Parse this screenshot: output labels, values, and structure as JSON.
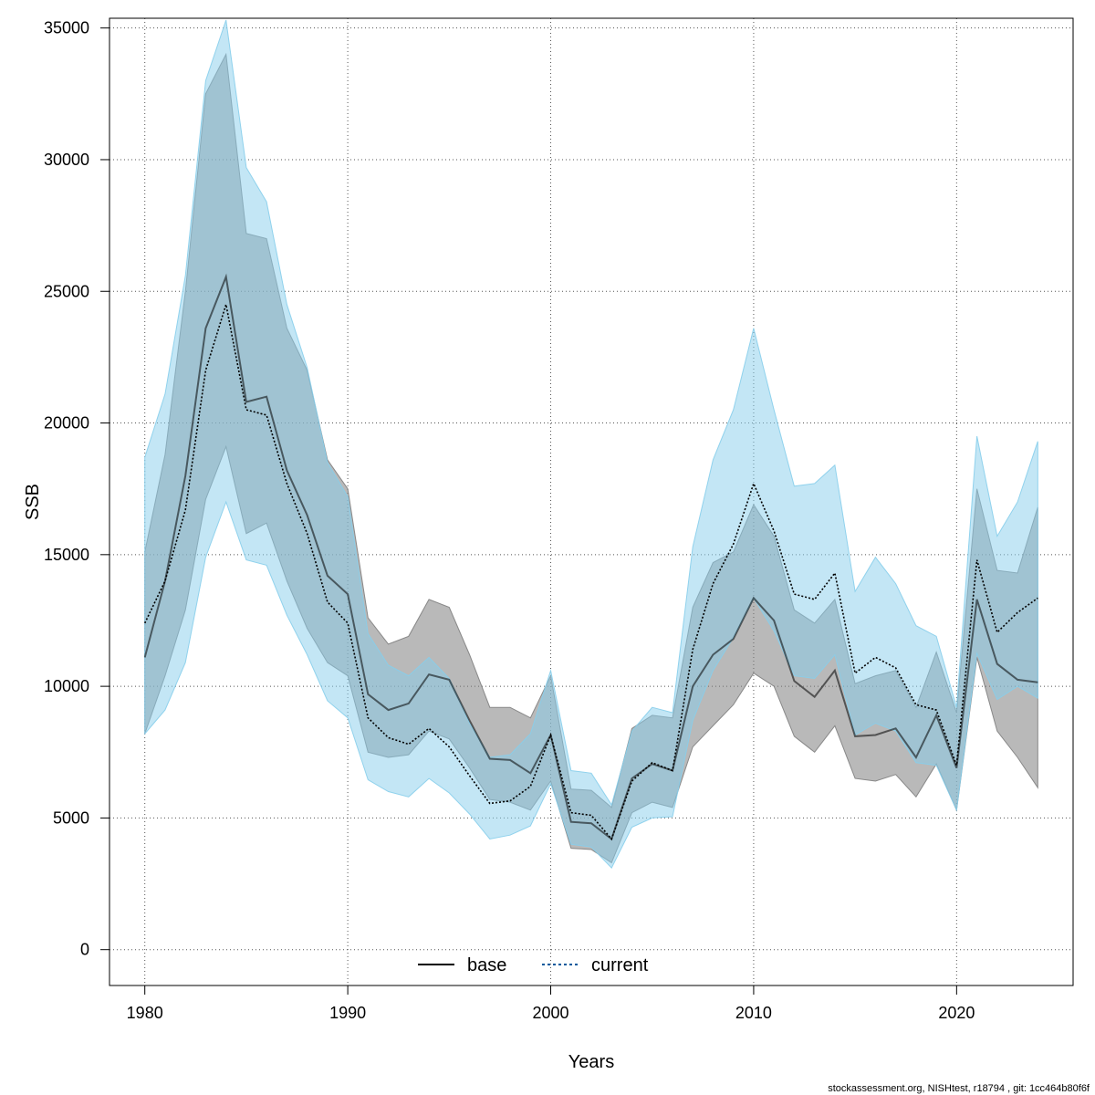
{
  "chart_data": {
    "type": "line",
    "xlabel": "Years",
    "ylabel": "SSB",
    "xlim": [
      1978.26,
      2025.74
    ],
    "ylim": [
      -1362,
      35370
    ],
    "xticks": [
      1980,
      1990,
      2000,
      2010,
      2020
    ],
    "yticks": [
      0,
      5000,
      10000,
      15000,
      20000,
      25000,
      30000,
      35000
    ],
    "grid": true,
    "legend_position": "bottom",
    "x": [
      1980,
      1981,
      1982,
      1983,
      1984,
      1985,
      1986,
      1987,
      1988,
      1989,
      1990,
      1991,
      1992,
      1993,
      1994,
      1995,
      1996,
      1997,
      1998,
      1999,
      2000,
      2001,
      2002,
      2003,
      2004,
      2005,
      2006,
      2007,
      2008,
      2009,
      2010,
      2011,
      2012,
      2013,
      2014,
      2015,
      2016,
      2017,
      2018,
      2019,
      2020,
      2021,
      2022,
      2023,
      2024
    ],
    "series": [
      {
        "name": "base",
        "line_style": "solid",
        "color": "#000000",
        "band_color": "#808080",
        "values": [
          11100,
          14000,
          18000,
          23600,
          25550,
          20800,
          21000,
          18200,
          16500,
          14200,
          13500,
          9700,
          9100,
          9350,
          10450,
          10250,
          8700,
          7250,
          7200,
          6700,
          8150,
          4850,
          4800,
          4200,
          6500,
          7050,
          6800,
          10000,
          11200,
          11800,
          13350,
          12500,
          10200,
          9600,
          10600,
          8100,
          8150,
          8400,
          7300,
          8900,
          6900,
          13300,
          10850,
          10250,
          10150
        ],
        "lower": [
          8200,
          10400,
          12900,
          17100,
          19100,
          15800,
          16200,
          14000,
          12200,
          10900,
          10400,
          7500,
          7300,
          7400,
          8300,
          8000,
          6900,
          5700,
          5600,
          5300,
          6400,
          3850,
          3800,
          3300,
          5200,
          5600,
          5400,
          7700,
          8500,
          9300,
          10500,
          10000,
          8100,
          7500,
          8500,
          6500,
          6400,
          6650,
          5800,
          7050,
          5300,
          11100,
          8300,
          7300,
          6150
        ],
        "upper": [
          15100,
          18800,
          25000,
          32500,
          34000,
          27200,
          27000,
          23600,
          22000,
          18600,
          17500,
          12600,
          11600,
          11900,
          13300,
          13000,
          11200,
          9200,
          9200,
          8800,
          10400,
          6100,
          6050,
          5400,
          8400,
          8900,
          8800,
          13000,
          14700,
          15100,
          16900,
          15700,
          12900,
          12400,
          13300,
          10100,
          10400,
          10600,
          9200,
          11300,
          9000,
          17500,
          14400,
          14300,
          16800
        ]
      },
      {
        "name": "current",
        "line_style": "dotted",
        "color": "#005a9c",
        "band_color": "#87ceeb",
        "values": [
          12400,
          14000,
          16700,
          22000,
          24500,
          20500,
          20300,
          17700,
          15800,
          13200,
          12400,
          8800,
          8050,
          7800,
          8400,
          7700,
          6600,
          5550,
          5650,
          6200,
          8150,
          5200,
          5100,
          4200,
          6400,
          7100,
          6800,
          11400,
          13900,
          15400,
          17700,
          15900,
          13500,
          13300,
          14300,
          10500,
          11100,
          10700,
          9300,
          9100,
          7000,
          14800,
          12050,
          12800,
          13350
        ],
        "lower": [
          8200,
          9100,
          10900,
          14900,
          17000,
          14800,
          14600,
          12700,
          11200,
          9450,
          8800,
          6450,
          6000,
          5800,
          6500,
          5950,
          5150,
          4200,
          4350,
          4700,
          6300,
          4000,
          3900,
          3100,
          4650,
          5000,
          5050,
          8700,
          10600,
          11850,
          13350,
          12100,
          10400,
          10300,
          11200,
          8150,
          8600,
          8300,
          7100,
          7000,
          5300,
          11250,
          9500,
          10000,
          9550
        ],
        "upper": [
          18700,
          21100,
          25600,
          33000,
          35300,
          29700,
          28400,
          24500,
          22100,
          18500,
          17200,
          12000,
          10800,
          10400,
          11100,
          10300,
          8600,
          7300,
          7400,
          8200,
          10600,
          6800,
          6700,
          5500,
          8300,
          9200,
          9000,
          15300,
          18600,
          20500,
          23600,
          20500,
          17600,
          17700,
          18400,
          13600,
          14900,
          13900,
          12300,
          11900,
          9200,
          19500,
          15700,
          17000,
          19300
        ]
      }
    ]
  },
  "footer": {
    "credit": "stockassessment.org, NISHtest, r18794 , git: 1cc464b80f6f"
  }
}
